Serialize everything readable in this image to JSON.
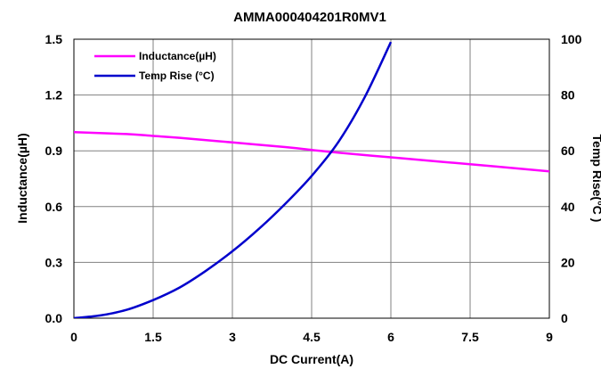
{
  "chart_data": {
    "type": "line",
    "title": "AMMA000404201R0MV1",
    "xlabel": "DC Current(A)",
    "ylabel_left": "Inductance(µH)",
    "ylabel_right": "Temp Rise(°C )",
    "xlim": [
      0,
      9
    ],
    "ylim_left": [
      0,
      1.5
    ],
    "ylim_right": [
      0,
      100
    ],
    "x_ticks": [
      "0",
      "1.5",
      "3",
      "4.5",
      "6",
      "7.5",
      "9"
    ],
    "y_left_ticks": [
      "0.0",
      "0.3",
      "0.6",
      "0.9",
      "1.2",
      "1.5"
    ],
    "y_right_ticks": [
      "0",
      "20",
      "40",
      "60",
      "80",
      "100"
    ],
    "grid": true,
    "legend_position": "top-left",
    "series": [
      {
        "name": "Inductance(µH)",
        "axis": "left",
        "color": "#ff00ff",
        "x": [
          0,
          1,
          1.5,
          2,
          3,
          4,
          4.5,
          5,
          6,
          7,
          8,
          9
        ],
        "y": [
          1.0,
          0.99,
          0.98,
          0.97,
          0.945,
          0.92,
          0.905,
          0.89,
          0.865,
          0.84,
          0.815,
          0.79
        ]
      },
      {
        "name": "Temp Rise (°C)",
        "axis": "right",
        "color": "#0000cc",
        "x": [
          0,
          0.5,
          1,
          1.5,
          2,
          2.5,
          3,
          3.5,
          4,
          4.5,
          5,
          5.5,
          6
        ],
        "y": [
          0,
          1,
          3,
          6.5,
          11,
          17,
          24,
          32,
          41,
          51,
          63,
          79,
          99
        ]
      }
    ]
  }
}
